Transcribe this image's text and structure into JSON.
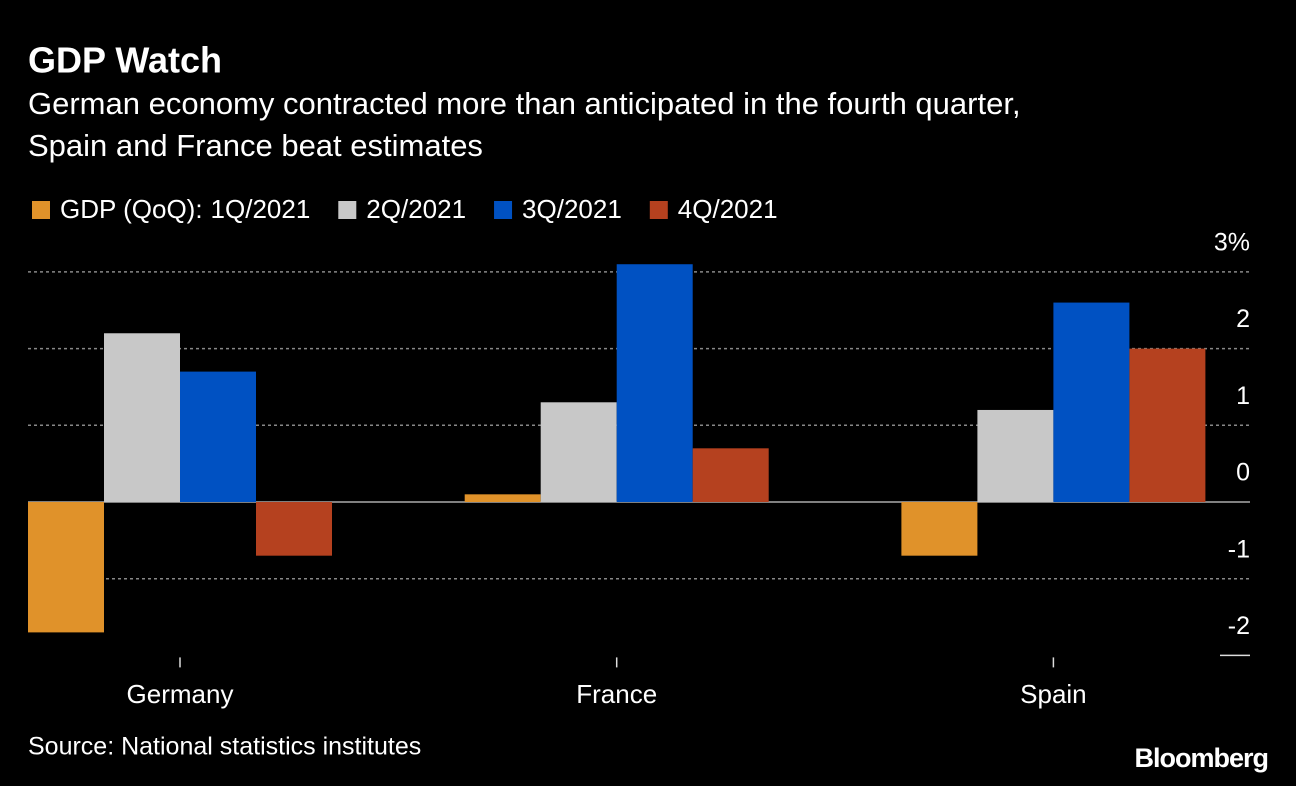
{
  "chart_data": {
    "type": "bar",
    "title": "GDP Watch",
    "subtitle": [
      "German economy contracted more than anticipated in the fourth quarter,",
      "Spain and France beat estimates"
    ],
    "legend_title": "GDP (QoQ):",
    "categories": [
      "Germany",
      "France",
      "Spain"
    ],
    "series": [
      {
        "name": "1Q/2021",
        "color": "#e0922a",
        "values": [
          -1.7,
          0.1,
          -0.7
        ]
      },
      {
        "name": "2Q/2021",
        "color": "#c8c8c8",
        "values": [
          2.2,
          1.3,
          1.2
        ]
      },
      {
        "name": "3Q/2021",
        "color": "#0051c2",
        "values": [
          1.7,
          3.1,
          2.6
        ]
      },
      {
        "name": "4Q/2021",
        "color": "#b5411f",
        "values": [
          -0.7,
          0.7,
          2.0
        ]
      }
    ],
    "ylim": [
      -2,
      3.2
    ],
    "yticks": [
      -2,
      -1,
      0,
      1,
      2,
      {
        "value": 3,
        "label": "3%"
      }
    ],
    "grid": true,
    "source": "Source: National statistics institutes",
    "brand": "Bloomberg"
  }
}
